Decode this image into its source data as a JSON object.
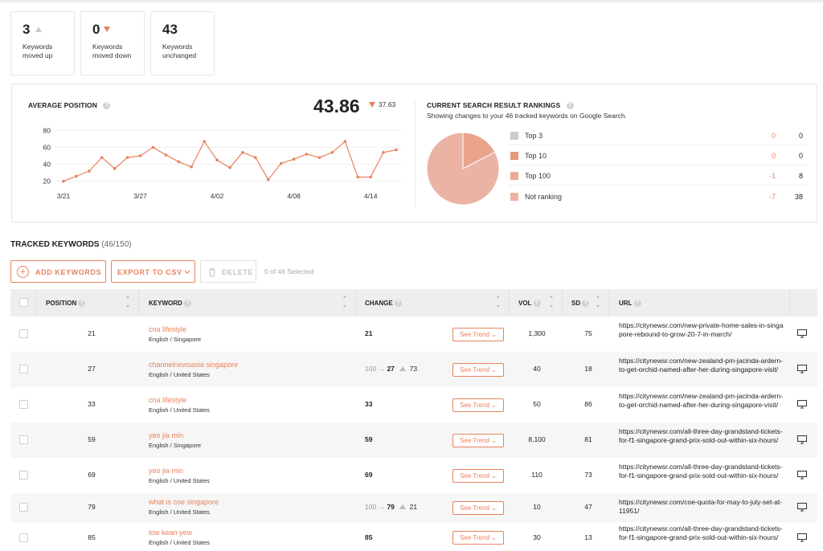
{
  "stats": [
    {
      "value": "3",
      "label": "Keywords moved up",
      "arrow": "up"
    },
    {
      "value": "0",
      "label": "Keywords moved down",
      "arrow": "down"
    },
    {
      "value": "43",
      "label": "Keywords unchanged",
      "arrow": "none"
    }
  ],
  "average_position": {
    "title": "AVERAGE POSITION",
    "help": "?",
    "value": "43.86",
    "delta": "37.63"
  },
  "chart_data": {
    "type": "line",
    "title": "AVERAGE POSITION",
    "xlabel": "",
    "ylabel": "",
    "x_tick_labels": [
      "3/21",
      "3/27",
      "4/02",
      "4/08",
      "4/14"
    ],
    "y_ticks": [
      80,
      60,
      40,
      20
    ],
    "ylim": [
      15,
      85
    ],
    "grid": true,
    "color": "#e8825e",
    "series": [
      {
        "values": [
          20,
          26,
          32,
          48,
          35,
          48,
          50,
          60,
          51,
          43,
          37,
          67,
          45,
          36,
          54,
          48,
          22,
          41,
          46,
          52,
          48,
          54,
          67,
          25,
          25,
          54,
          57
        ]
      }
    ]
  },
  "rankings": {
    "title": "CURRENT SEARCH RESULT RANKINGS",
    "help": "?",
    "subtitle": "Showing changes to your 46 tracked keywords on Google Search.",
    "rows": [
      {
        "name": "Top 3",
        "change": "0",
        "count": "0",
        "color": "#c9ccca"
      },
      {
        "name": "Top 10",
        "change": "0",
        "count": "0",
        "color": "#e39a7d"
      },
      {
        "name": "Top 100",
        "change": "-1",
        "count": "8",
        "color": "#ecaa95"
      },
      {
        "name": "Not ranking",
        "change": "-7",
        "count": "38",
        "color": "#eab3a4"
      }
    ],
    "pie": {
      "type": "pie",
      "slices": [
        {
          "label": "Top 3",
          "value": 0,
          "color": "#c9ccca"
        },
        {
          "label": "Top 10",
          "value": 0,
          "color": "#e39a7d"
        },
        {
          "label": "Top 100",
          "value": 8,
          "color": "#eaa48d"
        },
        {
          "label": "Not ranking",
          "value": 38,
          "color": "#eab3a4"
        }
      ]
    }
  },
  "tracked": {
    "title": "TRACKED KEYWORDS",
    "count": "(46/150)",
    "add_label": "ADD KEYWORDS",
    "export_label": "EXPORT TO CSV",
    "delete_label": "DELETE",
    "selected": "0 of 46 Selected",
    "columns": {
      "position": "POSITION",
      "keyword": "KEYWORD",
      "change": "CHANGE",
      "vol": "VOL",
      "sd": "SD",
      "url": "URL"
    },
    "trend_label": "See Trend",
    "rows": [
      {
        "position": "21",
        "keyword": "cna lifestyle",
        "location": "English / Singapore",
        "change_from": "",
        "change_to": "21",
        "change_delta": "",
        "vol": "1,300",
        "sd": "75",
        "url": "https://citynewsr.com/new-private-home-sales-in-singapore-rebound-to-grow-20-7-in-march/"
      },
      {
        "position": "27",
        "keyword": "channelnewsasia singapore",
        "location": "English / United States",
        "change_from": "100",
        "change_to": "27",
        "change_delta": "73",
        "vol": "40",
        "sd": "18",
        "url": "https://citynewsr.com/new-zealand-pm-jacinda-ardern-to-get-orchid-named-after-her-during-singapore-visit/"
      },
      {
        "position": "33",
        "keyword": "cna lifestyle",
        "location": "English / United States",
        "change_from": "",
        "change_to": "33",
        "change_delta": "",
        "vol": "50",
        "sd": "86",
        "url": "https://citynewsr.com/new-zealand-pm-jacinda-ardern-to-get-orchid-named-after-her-during-singapore-visit/"
      },
      {
        "position": "59",
        "keyword": "yeo jia min",
        "location": "English / Singapore",
        "change_from": "",
        "change_to": "59",
        "change_delta": "",
        "vol": "8,100",
        "sd": "81",
        "url": "https://citynewsr.com/all-three-day-grandstand-tickets-for-f1-singapore-grand-prix-sold-out-within-six-hours/"
      },
      {
        "position": "69",
        "keyword": "yeo jia min",
        "location": "English / United States",
        "change_from": "",
        "change_to": "69",
        "change_delta": "",
        "vol": "110",
        "sd": "73",
        "url": "https://citynewsr.com/all-three-day-grandstand-tickets-for-f1-singapore-grand-prix-sold-out-within-six-hours/"
      },
      {
        "position": "79",
        "keyword": "what is coe singapore",
        "location": "English / United States",
        "change_from": "100",
        "change_to": "79",
        "change_delta": "21",
        "vol": "10",
        "sd": "47",
        "url": "https://citynewsr.com/coe-quota-for-may-to-july-set-at-11951/"
      },
      {
        "position": "85",
        "keyword": "low kean yew",
        "location": "English / United States",
        "change_from": "",
        "change_to": "85",
        "change_delta": "",
        "vol": "30",
        "sd": "13",
        "url": "https://citynewsr.com/all-three-day-grandstand-tickets-for-f1-singapore-grand-prix-sold-out-within-six-hours/"
      }
    ]
  }
}
